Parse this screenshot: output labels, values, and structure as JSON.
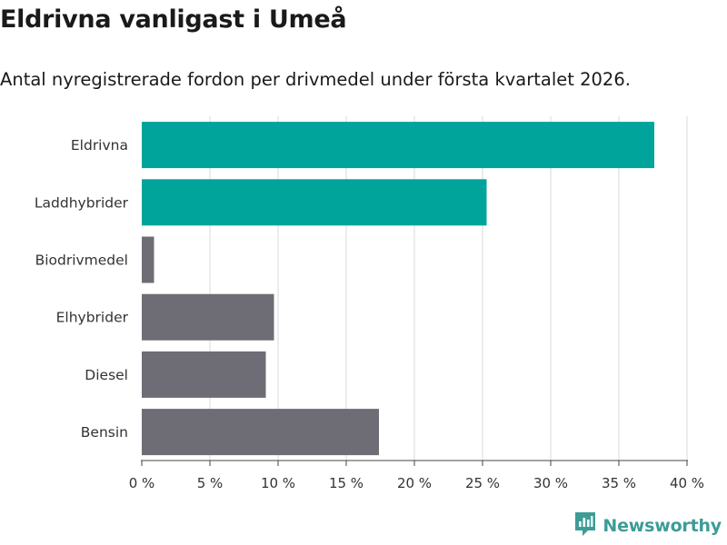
{
  "header": {
    "title": "Eldrivna vanligast i Umeå",
    "subtitle": "Antal nyregistrerade fordon per drivmedel under första kvartalet 2026."
  },
  "chart_data": {
    "type": "bar",
    "orientation": "horizontal",
    "title": "Eldrivna vanligast i Umeå",
    "subtitle": "Antal nyregistrerade fordon per drivmedel under första kvartalet 2026.",
    "xlabel": "",
    "ylabel": "",
    "categories": [
      "Eldrivna",
      "Laddhybrider",
      "Biodrivmedel",
      "Elhybrider",
      "Diesel",
      "Bensin"
    ],
    "values": [
      37.6,
      25.3,
      0.9,
      9.7,
      9.1,
      17.4
    ],
    "colors": [
      "#00a49a",
      "#00a49a",
      "#6e6d75",
      "#6e6d75",
      "#6e6d75",
      "#6e6d75"
    ],
    "xlim": [
      0,
      40
    ],
    "xticks": [
      0,
      5,
      10,
      15,
      20,
      25,
      30,
      35,
      40
    ],
    "xtick_labels": [
      "0 %",
      "5 %",
      "10 %",
      "15 %",
      "20 %",
      "25 %",
      "30 %",
      "35 %",
      "40 %"
    ],
    "grid": true,
    "gridline_color": "#d9d9d9"
  },
  "brand": {
    "name": "Newsworthy",
    "icon": "newsworthy-logo-icon",
    "color": "#3d9c96"
  }
}
